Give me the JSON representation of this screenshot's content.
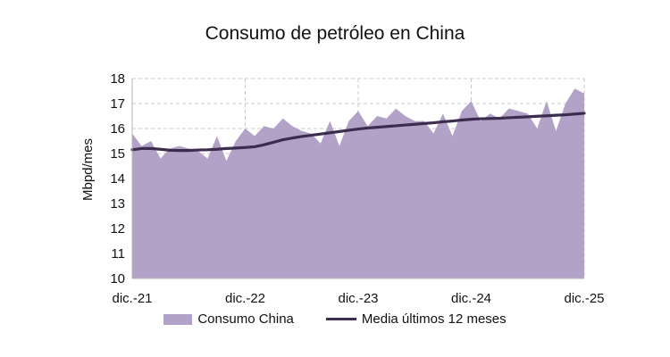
{
  "chart_data": {
    "type": "area",
    "title": "Consumo de petróleo en China",
    "ylabel": "Mbpd/mes",
    "xlabel": "",
    "ylim": [
      10,
      18
    ],
    "yticks": [
      10,
      11,
      12,
      13,
      14,
      15,
      16,
      17,
      18
    ],
    "xticks": [
      "dic.-21",
      "dic.-22",
      "dic.-23",
      "dic.-24",
      "dic.-25"
    ],
    "grid": true,
    "legend_position": "bottom",
    "x_count": 49,
    "series": [
      {
        "name": "Consumo China",
        "type": "area",
        "color": "#b3a2c8",
        "values": [
          15.8,
          15.3,
          15.5,
          14.8,
          15.2,
          15.3,
          15.2,
          15.1,
          14.8,
          15.7,
          14.7,
          15.5,
          16.0,
          15.7,
          16.1,
          16.0,
          16.4,
          16.1,
          15.9,
          15.8,
          15.4,
          16.3,
          15.3,
          16.3,
          16.7,
          16.1,
          16.5,
          16.4,
          16.8,
          16.5,
          16.3,
          16.3,
          15.8,
          16.6,
          15.7,
          16.7,
          17.1,
          16.3,
          16.6,
          16.4,
          16.8,
          16.7,
          16.6,
          16.0,
          17.1,
          15.9,
          17.0,
          17.6,
          17.4
        ]
      },
      {
        "name": "Media últimos 12 meses",
        "type": "line",
        "color": "#3c2c4e",
        "values": [
          15.15,
          15.2,
          15.2,
          15.17,
          15.13,
          15.12,
          15.12,
          15.14,
          15.15,
          15.17,
          15.2,
          15.22,
          15.24,
          15.27,
          15.35,
          15.45,
          15.55,
          15.62,
          15.68,
          15.73,
          15.78,
          15.83,
          15.88,
          15.93,
          15.98,
          16.02,
          16.05,
          16.08,
          16.11,
          16.14,
          16.17,
          16.2,
          16.23,
          16.27,
          16.3,
          16.34,
          16.37,
          16.39,
          16.4,
          16.41,
          16.43,
          16.45,
          16.47,
          16.49,
          16.51,
          16.53,
          16.55,
          16.58,
          16.61
        ]
      }
    ]
  }
}
